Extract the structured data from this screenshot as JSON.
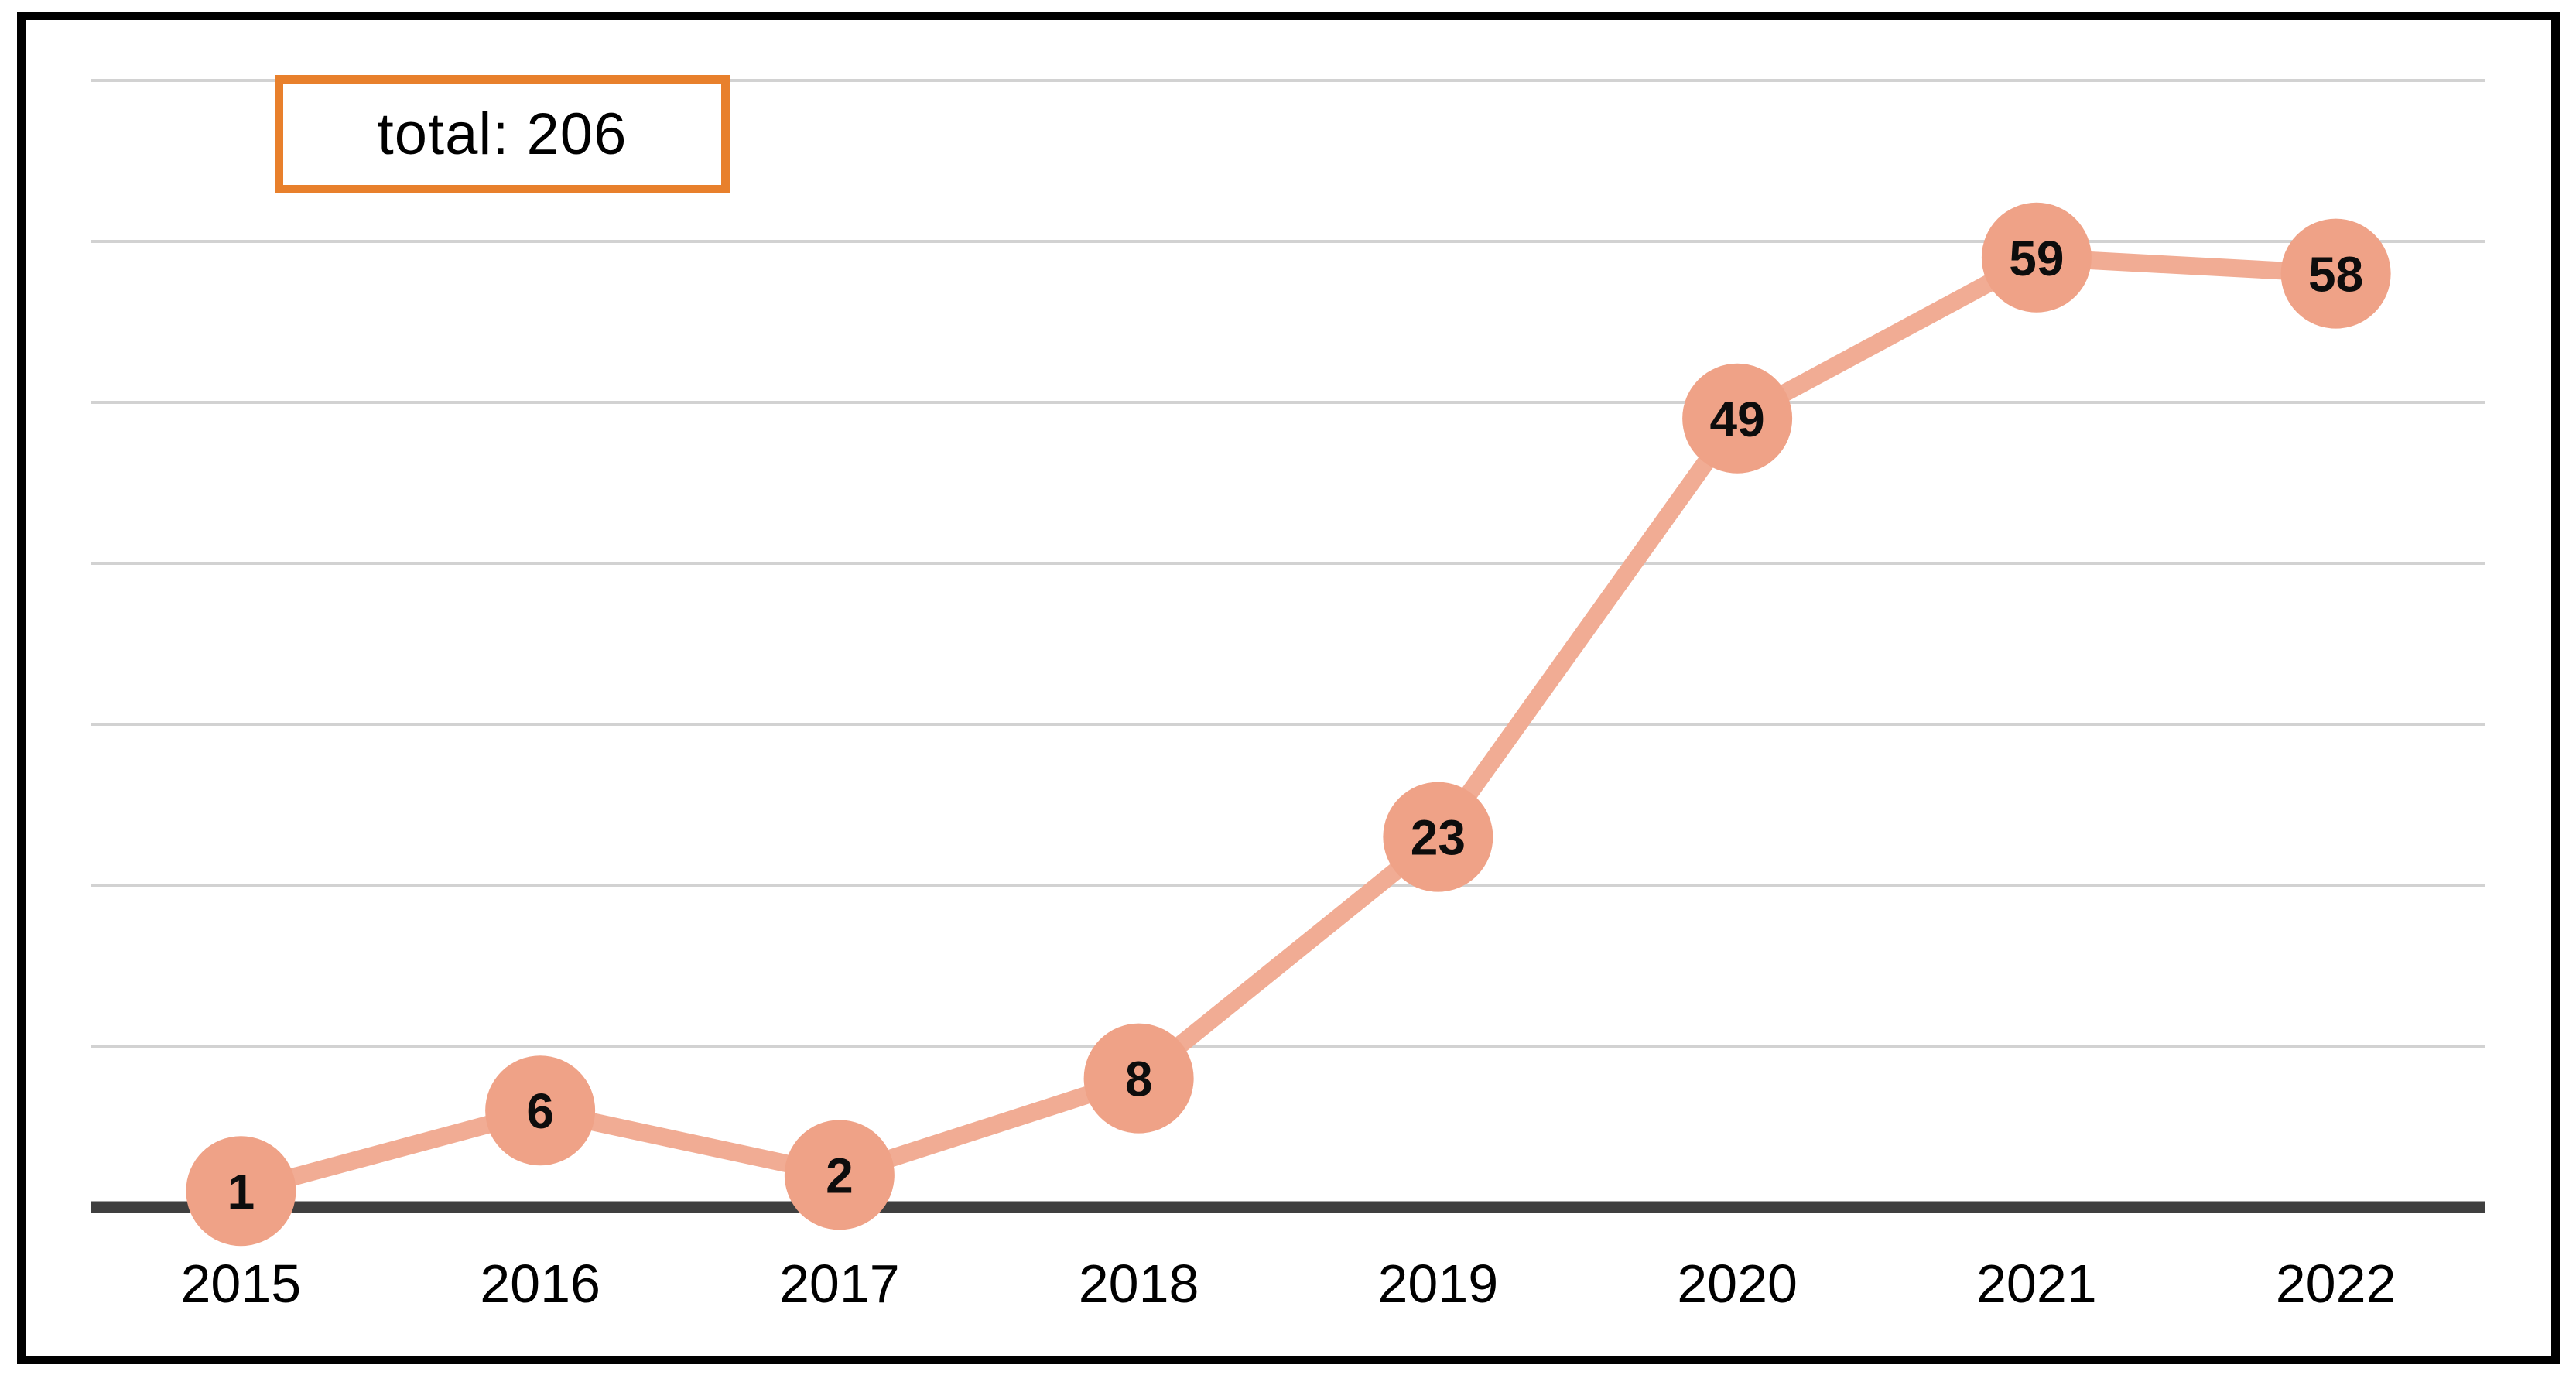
{
  "total_box": {
    "label": "total: 206"
  },
  "chart_data": {
    "type": "line",
    "title": "total: 206",
    "categories": [
      "2015",
      "2016",
      "2017",
      "2018",
      "2019",
      "2020",
      "2021",
      "2022"
    ],
    "values": [
      1,
      6,
      2,
      8,
      23,
      49,
      59,
      58
    ],
    "total": 206,
    "xlabel": "",
    "ylabel": "",
    "ylim": [
      0,
      72
    ],
    "grid": true,
    "grid_interval": 10,
    "data_labels": "inside markers",
    "legend": "none",
    "colors": {
      "marker_fill": "#EFA287",
      "line_stroke": "#F1AC94",
      "gridline": "#D2D2D2",
      "axis_line": "#3F3F3F",
      "label_text": "#000000",
      "marker_label_text": "#0D0D0D",
      "frame_border": "#000000",
      "total_box_border": "#E8802C",
      "background": "#FFFFFF"
    }
  }
}
